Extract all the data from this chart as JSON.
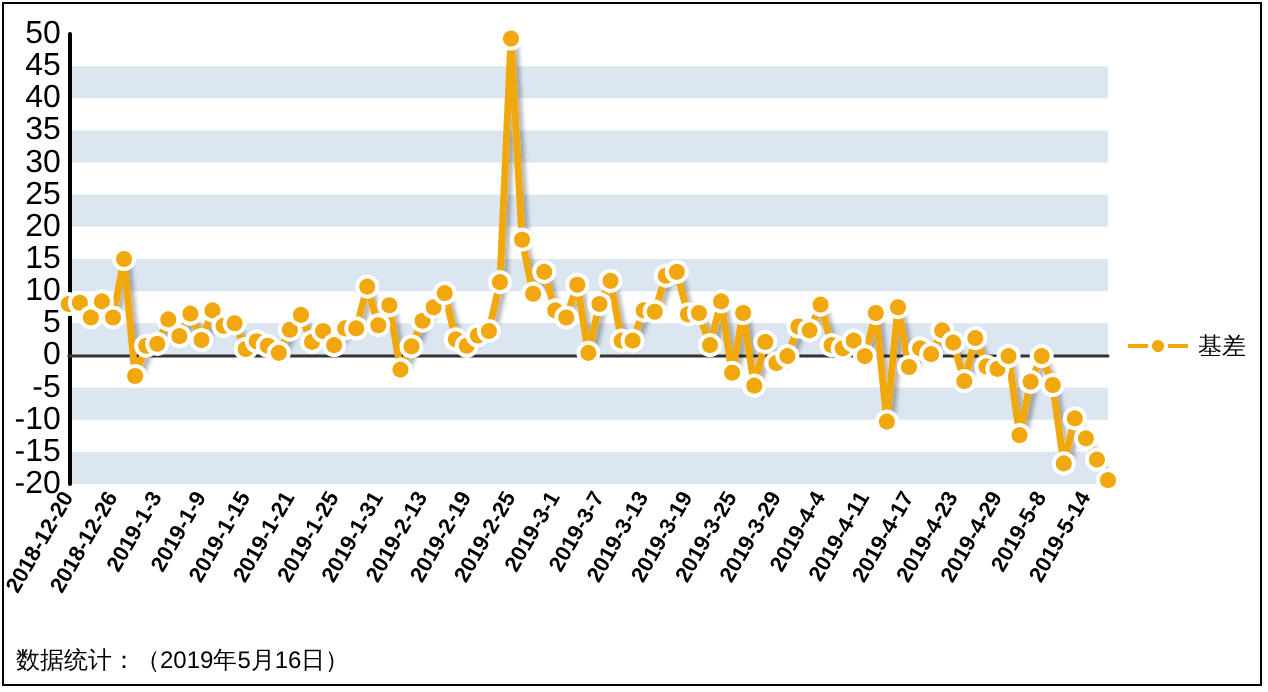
{
  "chart_data": {
    "type": "line",
    "categories": [
      "2018-12-20",
      null,
      null,
      null,
      "2018-12-26",
      null,
      null,
      null,
      "2019-1-3",
      null,
      null,
      null,
      "2019-1-9",
      null,
      null,
      null,
      "2019-1-15",
      null,
      null,
      null,
      "2019-1-21",
      null,
      null,
      null,
      "2019-1-25",
      null,
      null,
      null,
      "2019-1-31",
      null,
      null,
      null,
      "2019-2-13",
      null,
      null,
      null,
      "2019-2-19",
      null,
      null,
      null,
      "2019-2-25",
      null,
      null,
      null,
      "2019-3-1",
      null,
      null,
      null,
      "2019-3-7",
      null,
      null,
      null,
      "2019-3-13",
      null,
      null,
      null,
      "2019-3-19",
      null,
      null,
      null,
      "2019-3-25",
      null,
      null,
      null,
      "2019-3-29",
      null,
      null,
      null,
      "2019-4-4",
      null,
      null,
      null,
      "2019-4-11",
      null,
      null,
      null,
      "2019-4-17",
      null,
      null,
      null,
      "2019-4-23",
      null,
      null,
      null,
      "2019-4-29",
      null,
      null,
      null,
      "2019-5-8",
      null,
      null,
      null,
      "2019-5-14",
      null,
      null
    ],
    "series": [
      {
        "name": "基差",
        "color": "#f0a80e",
        "values": [
          8,
          8.2,
          5.9,
          8.4,
          5.9,
          15,
          -3.2,
          1.5,
          1.8,
          5.6,
          3,
          6.5,
          2.4,
          7,
          4.6,
          5,
          1,
          2.2,
          1.5,
          0.4,
          4,
          6.3,
          2.1,
          3.8,
          1.6,
          4.2,
          4.2,
          10.7,
          4.7,
          7.8,
          -2.2,
          1.4,
          5.4,
          7.5,
          9.7,
          2.5,
          1.5,
          3.1,
          3.8,
          11.4,
          49.3,
          18,
          9.6,
          13,
          7,
          5.9,
          11,
          0.4,
          8,
          11.6,
          2.3,
          2.3,
          7,
          6.8,
          12.4,
          13,
          6.4,
          6.6,
          1.6,
          8.4,
          -2.7,
          6.6,
          -4.7,
          2.1,
          -1.2,
          -0.1,
          4.5,
          3.9,
          7.9,
          1.6,
          1.1,
          2.3,
          -0.1,
          6.6,
          -10.3,
          7.5,
          -1.8,
          1.1,
          0.2,
          3.9,
          2,
          -4,
          2.7,
          -1.7,
          -2.1,
          -0.1,
          -12.4,
          -4.1,
          -0.1,
          -4.6,
          -16.8,
          -9.8,
          -12.9,
          -16.2,
          -19.4
        ]
      }
    ],
    "ylim": [
      -20,
      50
    ],
    "yticks": [
      -20,
      -15,
      -10,
      -5,
      0,
      5,
      10,
      15,
      20,
      25,
      30,
      35,
      40,
      45,
      50
    ],
    "grid": "y",
    "legend": "right",
    "marker": "circle",
    "line_style": "solid",
    "annotations": [
      "数据统计：（2019年5月16日）"
    ]
  }
}
